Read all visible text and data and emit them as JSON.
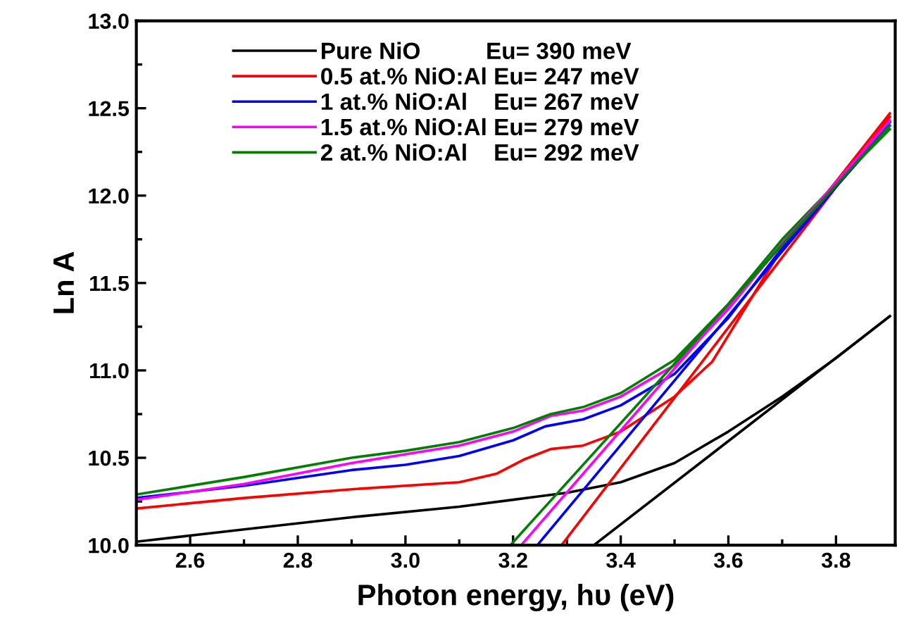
{
  "chart_data": {
    "type": "line",
    "xlabel": "Photon energy, hυ (eV)",
    "ylabel": "Ln A",
    "xlim": [
      2.5,
      3.91
    ],
    "ylim": [
      10.0,
      13.0
    ],
    "xticks": [
      {
        "value": 2.5,
        "label": null
      },
      2.6,
      {
        "value": 2.7,
        "label": null
      },
      2.8,
      {
        "value": 2.9,
        "label": null
      },
      {
        "value": 3.0,
        "label": "3.0"
      },
      {
        "value": 3.1,
        "label": null
      },
      3.2,
      {
        "value": 3.3,
        "label": null
      },
      3.4,
      {
        "value": 3.5,
        "label": null
      },
      3.6,
      {
        "value": 3.7,
        "label": null
      },
      3.8
    ],
    "yticks": [
      {
        "value": 10.0,
        "label": "10.0"
      },
      {
        "value": 10.25,
        "label": null
      },
      10.5,
      {
        "value": 10.75,
        "label": null
      },
      {
        "value": 11.0,
        "label": "11.0"
      },
      {
        "value": 11.25,
        "label": null
      },
      11.5,
      {
        "value": 11.75,
        "label": null
      },
      {
        "value": 12.0,
        "label": "12.0"
      },
      {
        "value": 12.25,
        "label": null
      },
      12.5,
      {
        "value": 12.75,
        "label": null
      },
      {
        "value": 13.0,
        "label": "13.0"
      }
    ],
    "grid": false,
    "legend": "top left",
    "series": [
      {
        "name": "Pure NiO          Eu= 390 meV",
        "color": "#000000",
        "x": [
          2.5,
          2.7,
          2.9,
          3.1,
          3.2,
          3.3,
          3.4,
          3.5,
          3.6,
          3.7,
          3.8,
          3.9
        ],
        "values": [
          10.02,
          10.09,
          10.16,
          10.22,
          10.26,
          10.3,
          10.36,
          10.47,
          10.65,
          10.85,
          11.07,
          11.31
        ]
      },
      {
        "name": "0.5 at.% NiO:Al Eu= 247 meV",
        "color": "#ff0000",
        "x": [
          2.5,
          2.7,
          2.9,
          3.1,
          3.17,
          3.22,
          3.27,
          3.33,
          3.4,
          3.5,
          3.57,
          3.62,
          3.7,
          3.8,
          3.9
        ],
        "values": [
          10.21,
          10.27,
          10.32,
          10.36,
          10.41,
          10.49,
          10.55,
          10.57,
          10.65,
          10.85,
          11.05,
          11.3,
          11.7,
          12.08,
          12.47
        ]
      },
      {
        "name": "1 at.% NiO:Al    Eu= 267 meV",
        "color": "#0000ff",
        "x": [
          2.5,
          2.7,
          2.9,
          3.0,
          3.1,
          3.2,
          3.26,
          3.33,
          3.4,
          3.5,
          3.6,
          3.7,
          3.8,
          3.9
        ],
        "values": [
          10.27,
          10.34,
          10.43,
          10.46,
          10.51,
          10.6,
          10.68,
          10.72,
          10.8,
          10.98,
          11.3,
          11.7,
          12.05,
          12.4
        ]
      },
      {
        "name": "1.5 at.% NiO:Al Eu= 279 meV",
        "color": "#ff00ff",
        "x": [
          2.5,
          2.7,
          2.9,
          3.0,
          3.1,
          3.2,
          3.27,
          3.33,
          3.4,
          3.5,
          3.6,
          3.7,
          3.8,
          3.9
        ],
        "values": [
          10.26,
          10.35,
          10.47,
          10.52,
          10.57,
          10.65,
          10.74,
          10.77,
          10.85,
          11.03,
          11.35,
          11.73,
          12.07,
          12.42
        ]
      },
      {
        "name": "2 at.% NiO:Al    Eu= 292 meV",
        "color": "#008000",
        "x": [
          2.5,
          2.7,
          2.9,
          3.0,
          3.1,
          3.2,
          3.27,
          3.33,
          3.4,
          3.5,
          3.6,
          3.7,
          3.8,
          3.9
        ],
        "values": [
          10.29,
          10.39,
          10.5,
          10.54,
          10.59,
          10.67,
          10.75,
          10.79,
          10.87,
          11.06,
          11.38,
          11.75,
          12.07,
          12.38
        ]
      },
      {
        "color": "#000000",
        "x": [
          3.35,
          3.9
        ],
        "values": [
          10.0,
          11.31
        ]
      },
      {
        "color": "#ff0000",
        "x": [
          3.29,
          3.9
        ],
        "values": [
          10.0,
          12.45
        ]
      },
      {
        "color": "#0000ff",
        "x": [
          3.245,
          3.9
        ],
        "values": [
          10.0,
          12.42
        ]
      },
      {
        "color": "#ff00ff",
        "x": [
          3.215,
          3.9
        ],
        "values": [
          10.0,
          12.43
        ]
      },
      {
        "color": "#008000",
        "x": [
          3.195,
          3.9
        ],
        "values": [
          10.0,
          12.4
        ]
      }
    ]
  }
}
